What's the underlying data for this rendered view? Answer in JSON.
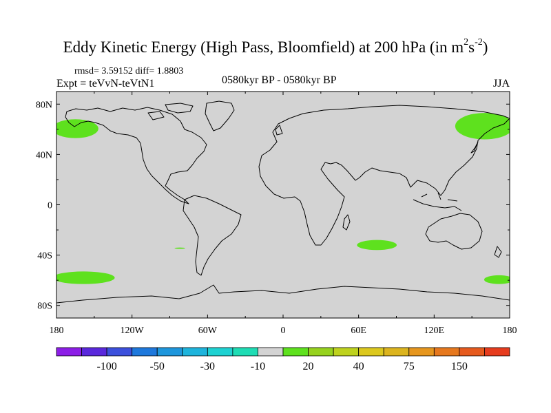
{
  "title_main": "Eddy Kinetic Energy (High Pass, Bloomfield) at 200 hPa (in m",
  "title_sup1": "2",
  "title_mid": "s",
  "title_sup2": "-2",
  "title_end": ")",
  "stats": "rmsd= 3.59152 diff= 1.8803",
  "expt": "Expt = teVvN-teVtN1",
  "period": "0580kyr BP - 0580kyr BP",
  "season": "JJA",
  "map": {
    "projection": "cylindrical equidistant",
    "lon_range": [
      -180,
      180
    ],
    "lat_range": [
      -90,
      90
    ],
    "background_color": "#d3d3d3",
    "positive_color": "#5ee11e",
    "lat_ticks": [
      {
        "lat": 80,
        "label": "80N"
      },
      {
        "lat": 40,
        "label": "40N"
      },
      {
        "lat": 0,
        "label": "0"
      },
      {
        "lat": -40,
        "label": "40S"
      },
      {
        "lat": -80,
        "label": "80S"
      }
    ],
    "lon_ticks": [
      {
        "lon": -180,
        "label": "180"
      },
      {
        "lon": -120,
        "label": "120W"
      },
      {
        "lon": -60,
        "label": "60W"
      },
      {
        "lon": 0,
        "label": "0"
      },
      {
        "lon": 60,
        "label": "60E"
      },
      {
        "lon": 120,
        "label": "120E"
      },
      {
        "lon": 180,
        "label": "180"
      }
    ],
    "regions": [
      {
        "name": "north-atlantic-positive",
        "lon": [
          -180,
          -150
        ],
        "lat": [
          53,
          68
        ]
      },
      {
        "name": "north-pacific-positive",
        "lon": [
          140,
          180
        ],
        "lat": [
          52,
          73
        ]
      },
      {
        "name": "south-indian-positive",
        "lon": [
          62,
          87
        ],
        "lat": [
          -36,
          -28
        ]
      },
      {
        "name": "south-pacific-west-positive",
        "lon": [
          -180,
          -137
        ],
        "lat": [
          -63,
          -53
        ]
      },
      {
        "name": "south-pacific-east-positive",
        "lon": [
          163,
          180
        ],
        "lat": [
          -63,
          -56
        ]
      },
      {
        "name": "small-atlantic-positive",
        "lon": [
          -83,
          -81
        ],
        "lat": [
          -35,
          -34
        ]
      }
    ]
  },
  "colorbar": {
    "colors": [
      "#8c1ee6",
      "#5a28dc",
      "#3c50dc",
      "#1e78dc",
      "#1e96dc",
      "#1eb4dc",
      "#1ed2d2",
      "#1edcb4",
      "#d3d3d3",
      "#5ee11e",
      "#96d21e",
      "#bed21e",
      "#dcc81e",
      "#dcb41e",
      "#e6961e",
      "#e6781e",
      "#e65a1e",
      "#e63c1e"
    ],
    "labels": [
      "-100",
      "-50",
      "-30",
      "-10",
      "20",
      "40",
      "75",
      "150"
    ]
  }
}
